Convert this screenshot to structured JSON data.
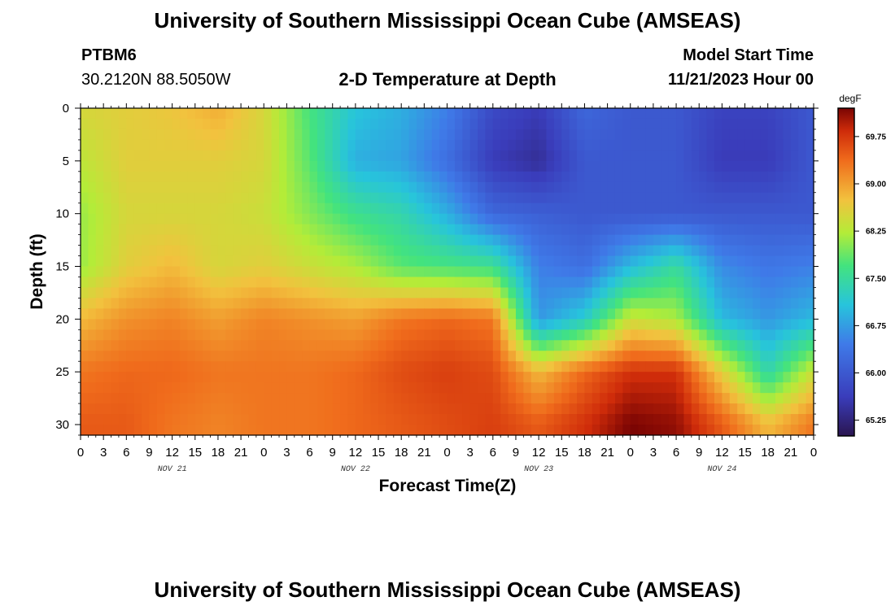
{
  "header": {
    "title": "University of Southern Mississippi Ocean Cube (AMSEAS)",
    "station_id": "PTBM6",
    "coordinates": "30.2120N  88.5050W",
    "plot_title": "2-D Temperature at Depth",
    "model_label": "Model Start Time",
    "model_start": "11/21/2023 Hour 00"
  },
  "footer": {
    "title": "University of Southern Mississippi Ocean Cube (AMSEAS)"
  },
  "chart_data": {
    "type": "heatmap",
    "title": "2-D Temperature at Depth",
    "xlabel": "Forecast Time(Z)",
    "ylabel": "Depth (ft)",
    "x_tick_labels": [
      "0",
      "3",
      "6",
      "9",
      "12",
      "15",
      "18",
      "21",
      "0",
      "3",
      "6",
      "9",
      "12",
      "15",
      "18",
      "21",
      "0",
      "3",
      "6",
      "9",
      "12",
      "15",
      "18",
      "21",
      "0",
      "3",
      "6",
      "9",
      "12",
      "15",
      "18",
      "21",
      "0"
    ],
    "day_labels": [
      "NOV 21",
      "NOV 22",
      "NOV 23",
      "NOV 24"
    ],
    "xlim_hours": [
      0,
      96
    ],
    "ylim_ft": [
      31,
      0
    ],
    "y_ticks": [
      "0",
      "5",
      "10",
      "15",
      "20",
      "25",
      "30"
    ],
    "colorbar": {
      "unit": "degF",
      "range": [
        65.0,
        70.2
      ],
      "ticks": [
        "69.75",
        "69.00",
        "68.25",
        "67.50",
        "66.75",
        "66.00",
        "65.25"
      ]
    },
    "x_hours": [
      0,
      6,
      12,
      18,
      24,
      30,
      36,
      42,
      48,
      54,
      60,
      66,
      72,
      78,
      84,
      90,
      96
    ],
    "depth_ft": [
      0,
      5,
      10,
      15,
      20,
      25,
      30
    ],
    "values_degF": [
      [
        68.5,
        68.6,
        68.7,
        68.9,
        68.5,
        67.7,
        67.1,
        66.9,
        66.5,
        65.8,
        65.6,
        66.2,
        66.0,
        66.0,
        65.7,
        65.7,
        66.0
      ],
      [
        68.3,
        68.6,
        68.6,
        68.6,
        68.5,
        67.8,
        66.9,
        66.8,
        66.3,
        65.6,
        65.4,
        66.0,
        66.0,
        66.0,
        65.6,
        65.6,
        66.0
      ],
      [
        68.1,
        68.5,
        68.5,
        68.5,
        68.4,
        68.0,
        67.6,
        67.4,
        66.9,
        66.2,
        66.1,
        66.0,
        66.0,
        66.0,
        66.0,
        66.0,
        66.0
      ],
      [
        68.1,
        68.6,
        68.8,
        68.5,
        68.6,
        68.4,
        68.2,
        67.8,
        67.7,
        67.6,
        66.5,
        66.3,
        67.0,
        67.5,
        66.6,
        66.4,
        66.5
      ],
      [
        68.8,
        69.1,
        69.2,
        69.0,
        69.2,
        69.1,
        69.0,
        69.3,
        69.4,
        69.3,
        66.7,
        67.2,
        68.4,
        68.2,
        67.0,
        66.7,
        67.0
      ],
      [
        69.3,
        69.4,
        69.4,
        69.3,
        69.3,
        69.3,
        69.4,
        69.6,
        69.7,
        69.6,
        68.8,
        69.4,
        69.8,
        69.8,
        68.6,
        67.4,
        68.4
      ],
      [
        69.5,
        69.5,
        69.3,
        69.2,
        69.3,
        69.3,
        69.4,
        69.5,
        69.6,
        69.7,
        69.5,
        69.8,
        70.2,
        70.1,
        69.5,
        68.8,
        69.3
      ]
    ]
  }
}
